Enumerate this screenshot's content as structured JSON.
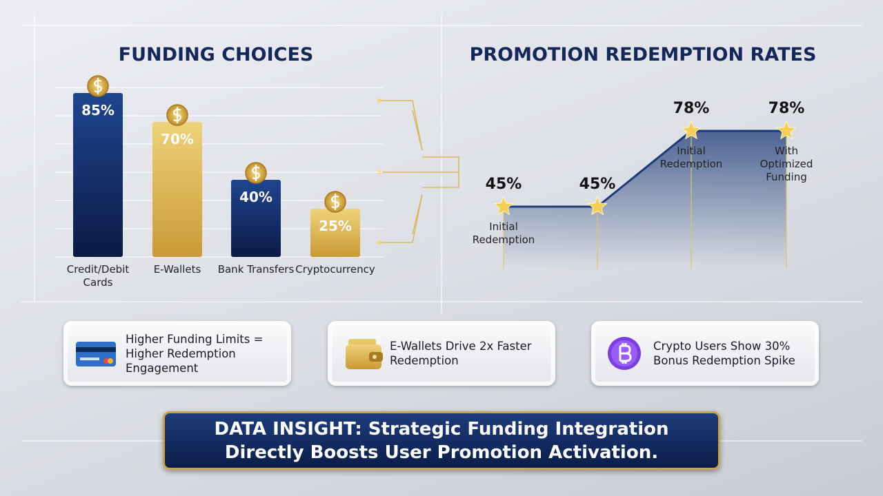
{
  "chart_data": [
    {
      "type": "bar",
      "title": "FUNDING CHOICES",
      "categories": [
        "Credit/Debit Cards",
        "E-Wallets",
        "Bank Transfers",
        "Cryptocurrency"
      ],
      "values": [
        85,
        70,
        40,
        25
      ],
      "value_labels": [
        "85%",
        "70%",
        "40%",
        "25%"
      ],
      "colors": [
        "navy",
        "gold",
        "navy",
        "gold"
      ],
      "ylim": [
        0,
        100
      ]
    },
    {
      "type": "line",
      "title": "PROMOTION REDEMPTION RATES",
      "categories": [
        "Initial Redemption",
        null,
        "Initial Redemption",
        "With Optimized Funding"
      ],
      "values": [
        45,
        45,
        78,
        78
      ],
      "value_labels": [
        "45%",
        "45%",
        "78%",
        "78%"
      ],
      "color": "#1c3a78",
      "ylim": [
        30,
        90
      ]
    }
  ],
  "cards": [
    {
      "text": "Higher Funding Limits = Higher Redemption Engagement"
    },
    {
      "text": "E-Wallets Drive 2x Faster Redemption"
    },
    {
      "text": "Crypto Users Show 30% Bonus Redemption Spike"
    }
  ],
  "insight": "DATA INSIGHT: Strategic Funding Integration Directly Boosts User Promotion Activation."
}
